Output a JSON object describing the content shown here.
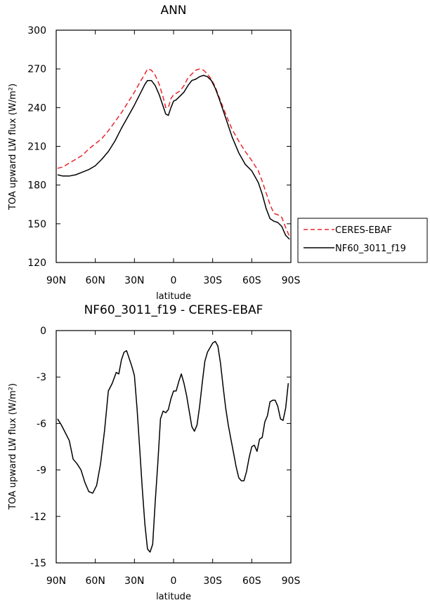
{
  "chart_data": [
    {
      "type": "line",
      "title": "ANN",
      "xlabel": "latitude",
      "ylabel": "TOA upward LW flux (W/m²)",
      "xlim": [
        90,
        -90
      ],
      "ylim": [
        120,
        300
      ],
      "x_ticks": [
        90,
        60,
        30,
        0,
        -30,
        -60,
        -90
      ],
      "x_tick_labels": [
        "90N",
        "60N",
        "30N",
        "0",
        "30S",
        "60S",
        "90S"
      ],
      "y_ticks": [
        120,
        150,
        180,
        210,
        240,
        270,
        300
      ],
      "y_tick_labels": [
        "120",
        "150",
        "180",
        "210",
        "240",
        "270",
        "300"
      ],
      "legend_position": "right",
      "series": [
        {
          "name": "CERES-EBAF",
          "color": "#e8262b",
          "dash": "dashed",
          "x": [
            89,
            85,
            80,
            75,
            70,
            65,
            60,
            55,
            50,
            45,
            40,
            35,
            30,
            25,
            22,
            20,
            17,
            14,
            11,
            8,
            6,
            4,
            2,
            0,
            -2,
            -5,
            -8,
            -11,
            -14,
            -17,
            -20,
            -23,
            -26,
            -29,
            -32,
            -35,
            -40,
            -45,
            -50,
            -55,
            -60,
            -65,
            -68,
            -71,
            -74,
            -77,
            -80,
            -83,
            -86,
            -89
          ],
          "y": [
            193,
            194,
            197,
            200,
            203,
            208,
            212,
            216,
            222,
            229,
            236,
            244,
            252,
            261,
            266,
            270,
            269,
            265,
            258,
            248,
            240,
            240,
            247,
            250,
            251,
            253,
            257,
            263,
            266,
            269,
            270,
            269,
            266,
            262,
            256,
            248,
            235,
            223,
            214,
            206,
            199,
            191,
            183,
            174,
            165,
            158,
            157,
            155,
            147,
            140
          ]
        },
        {
          "name": "NF60_3011_f19",
          "color": "#000000",
          "dash": "solid",
          "x": [
            89,
            85,
            80,
            75,
            70,
            65,
            60,
            55,
            50,
            45,
            40,
            35,
            30,
            25,
            22,
            20,
            17,
            14,
            11,
            8,
            6,
            4,
            2,
            0,
            -2,
            -5,
            -8,
            -11,
            -14,
            -17,
            -20,
            -23,
            -26,
            -29,
            -32,
            -35,
            -40,
            -45,
            -50,
            -55,
            -60,
            -65,
            -68,
            -71,
            -74,
            -77,
            -80,
            -83,
            -86,
            -89
          ],
          "y": [
            188,
            187,
            187,
            188,
            190,
            192,
            195,
            200,
            206,
            214,
            224,
            233,
            242,
            252,
            258,
            261,
            261,
            257,
            250,
            241,
            235,
            234,
            240,
            245,
            246,
            249,
            252,
            257,
            261,
            262,
            264,
            265,
            264,
            261,
            255,
            247,
            232,
            217,
            205,
            196,
            191,
            182,
            173,
            162,
            154,
            152,
            151,
            148,
            141,
            138
          ]
        }
      ]
    },
    {
      "type": "line",
      "title": "NF60_3011_f19 - CERES-EBAF",
      "xlabel": "latitude",
      "ylabel": "TOA upward LW flux (W/m²)",
      "xlim": [
        90,
        -90
      ],
      "ylim": [
        -15,
        0
      ],
      "x_ticks": [
        90,
        60,
        30,
        0,
        -30,
        -60,
        -90
      ],
      "x_tick_labels": [
        "90N",
        "60N",
        "30N",
        "0",
        "30S",
        "60S",
        "90S"
      ],
      "y_ticks": [
        -15,
        -12,
        -9,
        -6,
        -3,
        0
      ],
      "y_tick_labels": [
        "-15",
        "-12",
        "-9",
        "-6",
        "-3",
        "0"
      ],
      "series": [
        {
          "color": "#000000",
          "x": [
            89,
            86,
            83,
            80,
            77,
            74,
            71,
            68,
            65,
            62,
            59,
            56,
            53,
            50,
            47,
            44,
            42,
            40,
            38,
            36,
            34,
            32,
            30,
            28,
            26,
            24,
            22,
            20,
            18,
            16,
            14,
            12,
            10,
            8,
            6,
            4,
            2,
            0,
            -2,
            -4,
            -6,
            -8,
            -10,
            -12,
            -14,
            -16,
            -18,
            -20,
            -22,
            -24,
            -26,
            -28,
            -30,
            -32,
            -34,
            -36,
            -38,
            -40,
            -42,
            -44,
            -46,
            -48,
            -50,
            -52,
            -54,
            -56,
            -58,
            -60,
            -62,
            -64,
            -66,
            -68,
            -70,
            -72,
            -74,
            -76,
            -78,
            -80,
            -82,
            -84,
            -86,
            -88
          ],
          "y": [
            -5.7,
            -6.1,
            -6.6,
            -7.1,
            -8.3,
            -8.6,
            -9.0,
            -9.8,
            -10.4,
            -10.5,
            -10.0,
            -8.6,
            -6.5,
            -3.9,
            -3.4,
            -2.7,
            -2.8,
            -1.9,
            -1.4,
            -1.3,
            -1.8,
            -2.3,
            -2.9,
            -5.0,
            -7.6,
            -10.2,
            -12.5,
            -14.1,
            -14.3,
            -13.8,
            -11.0,
            -8.5,
            -5.7,
            -5.2,
            -5.3,
            -5.1,
            -4.4,
            -3.9,
            -3.9,
            -3.3,
            -2.8,
            -3.4,
            -4.2,
            -5.2,
            -6.2,
            -6.5,
            -6.1,
            -4.9,
            -3.4,
            -2.0,
            -1.4,
            -1.1,
            -0.8,
            -0.7,
            -1.0,
            -2.1,
            -3.6,
            -5.0,
            -6.1,
            -7.0,
            -7.9,
            -8.8,
            -9.5,
            -9.7,
            -9.7,
            -9.1,
            -8.2,
            -7.5,
            -7.4,
            -7.8,
            -7.0,
            -6.9,
            -5.9,
            -5.5,
            -4.6,
            -4.5,
            -4.5,
            -4.9,
            -5.7,
            -5.8,
            -5.0,
            -3.4
          ]
        }
      ]
    }
  ]
}
